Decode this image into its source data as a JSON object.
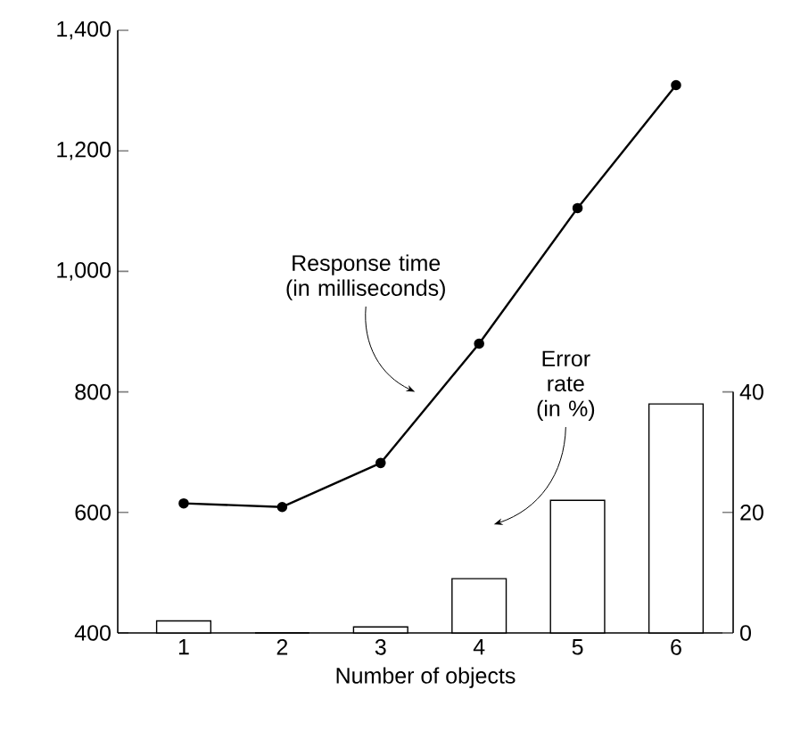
{
  "chart_data": {
    "type": "line",
    "xlabel": "Number of objects",
    "categories": [
      "1",
      "2",
      "3",
      "4",
      "5",
      "6"
    ],
    "ylim": [
      400,
      1400
    ],
    "yticks": [
      400,
      600,
      800,
      {
        "value": 1000,
        "label": "1,000"
      },
      {
        "value": 1200,
        "label": "1,200"
      },
      {
        "value": 1400,
        "label": "1,400"
      }
    ],
    "y2lim": [
      0,
      100
    ],
    "y2ticks": [
      0,
      20,
      40
    ],
    "marker": "circle",
    "series": [
      {
        "name": "Response time (in milliseconds)",
        "color": "#000000",
        "values": [
          615,
          609,
          682,
          880,
          1105,
          1309
        ]
      },
      {
        "name": "Error rate (in %)",
        "type": "bar",
        "axis": "y2",
        "color": "#ffffff",
        "values": [
          2,
          0,
          1,
          9,
          22,
          38
        ]
      }
    ]
  }
}
